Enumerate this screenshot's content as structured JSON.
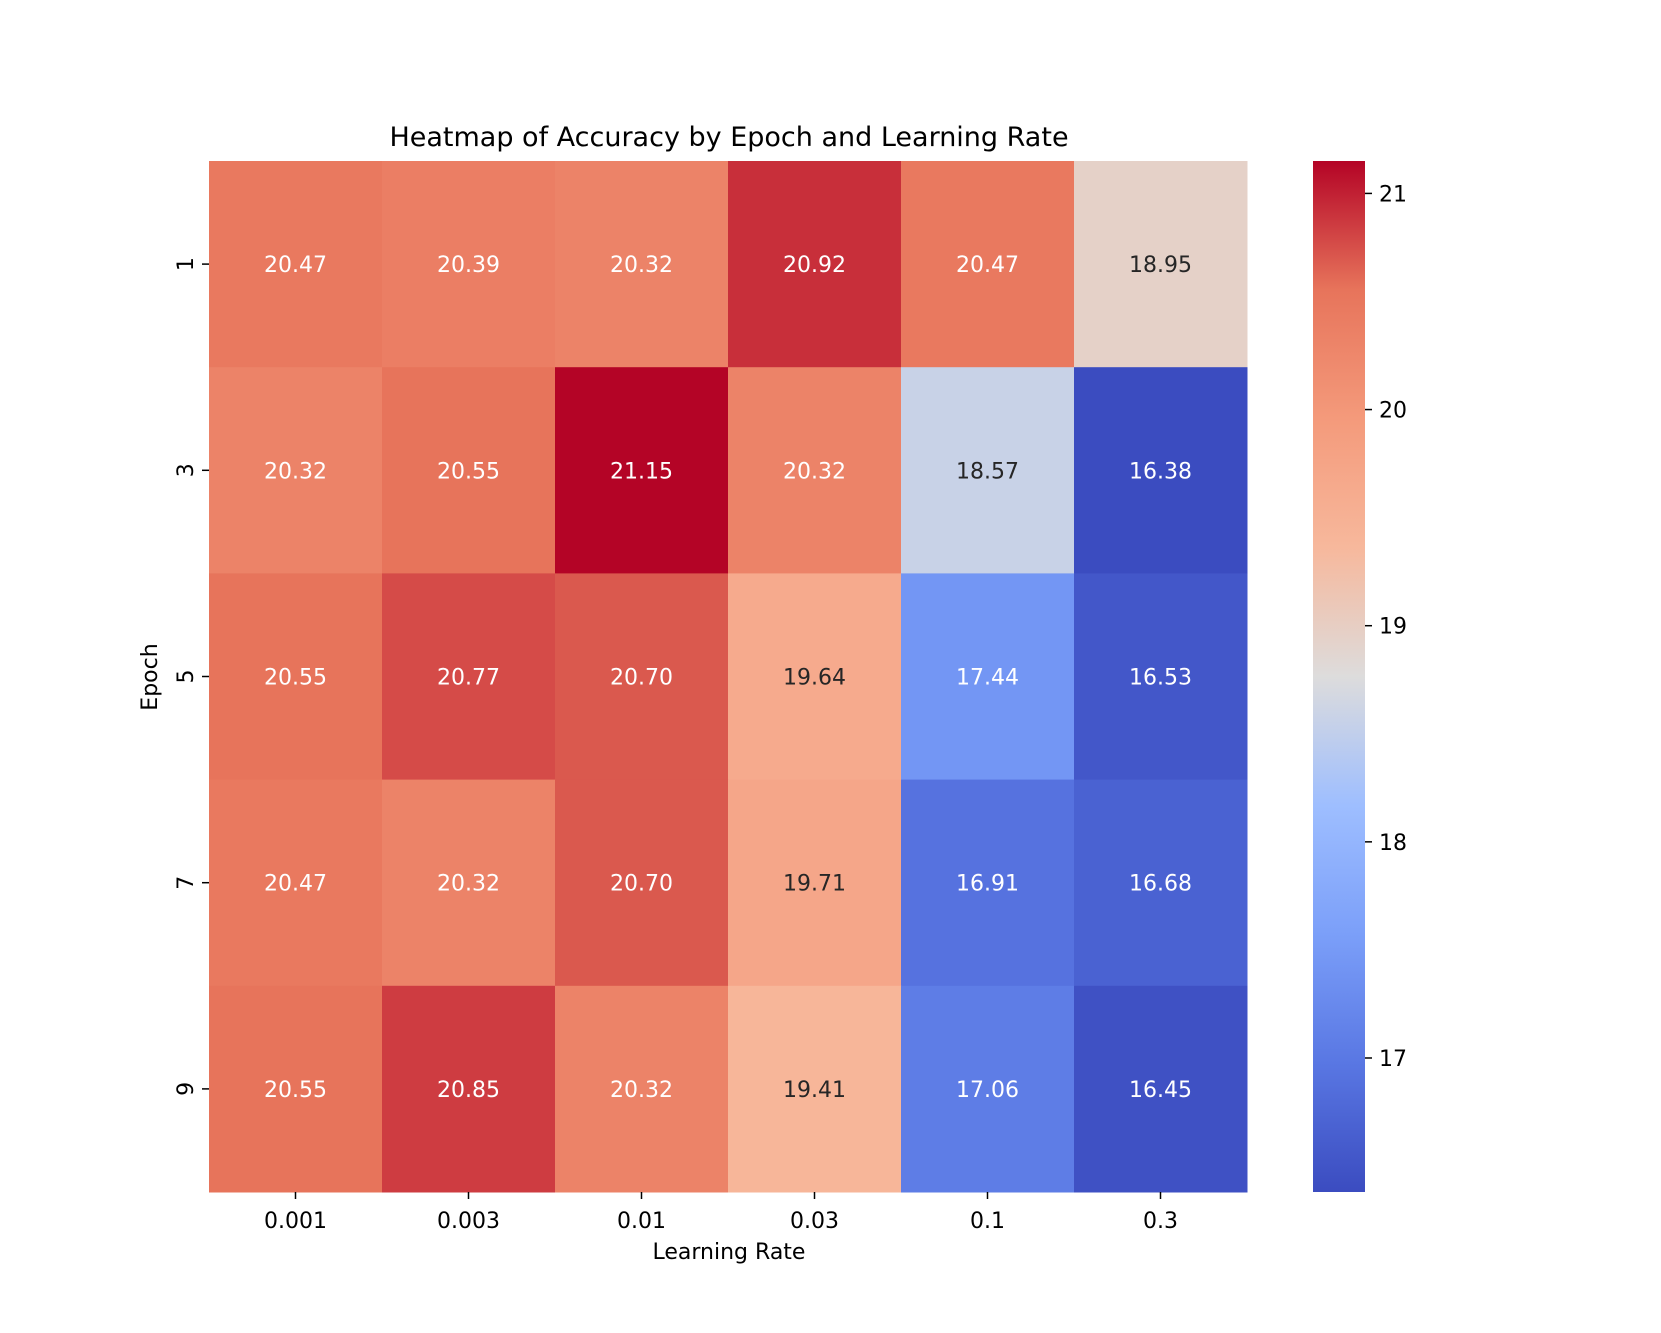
{
  "chart_data": {
    "type": "heatmap",
    "title": "Heatmap of Accuracy by Epoch and Learning Rate",
    "xlabel": "Learning Rate",
    "ylabel": "Epoch",
    "x_categories": [
      "0.001",
      "0.003",
      "0.01",
      "0.03",
      "0.1",
      "0.3"
    ],
    "y_categories": [
      "1",
      "3",
      "5",
      "7",
      "9"
    ],
    "values": [
      [
        20.47,
        20.39,
        20.32,
        20.92,
        20.47,
        18.95
      ],
      [
        20.32,
        20.55,
        21.15,
        20.32,
        18.57,
        16.38
      ],
      [
        20.55,
        20.77,
        20.7,
        19.64,
        17.44,
        16.53
      ],
      [
        20.47,
        20.32,
        20.7,
        19.71,
        16.91,
        16.68
      ],
      [
        20.55,
        20.85,
        20.32,
        19.41,
        17.06,
        16.45
      ]
    ],
    "cell_labels": [
      [
        "20.47",
        "20.39",
        "20.32",
        "20.92",
        "20.47",
        "18.95"
      ],
      [
        "20.32",
        "20.55",
        "21.15",
        "20.32",
        "18.57",
        "16.38"
      ],
      [
        "20.55",
        "20.77",
        "20.70",
        "19.64",
        "17.44",
        "16.53"
      ],
      [
        "20.47",
        "20.32",
        "20.70",
        "19.71",
        "16.91",
        "16.68"
      ],
      [
        "20.55",
        "20.85",
        "20.32",
        "19.41",
        "17.06",
        "16.45"
      ]
    ],
    "colormap": "coolwarm",
    "vmin": 16.38,
    "vmax": 21.15,
    "colorbar_ticks": [
      17,
      18,
      19,
      20,
      21
    ],
    "colorbar_tick_labels": [
      "17",
      "18",
      "19",
      "20",
      "21"
    ],
    "grid": false,
    "legend": "colorbar-right"
  }
}
